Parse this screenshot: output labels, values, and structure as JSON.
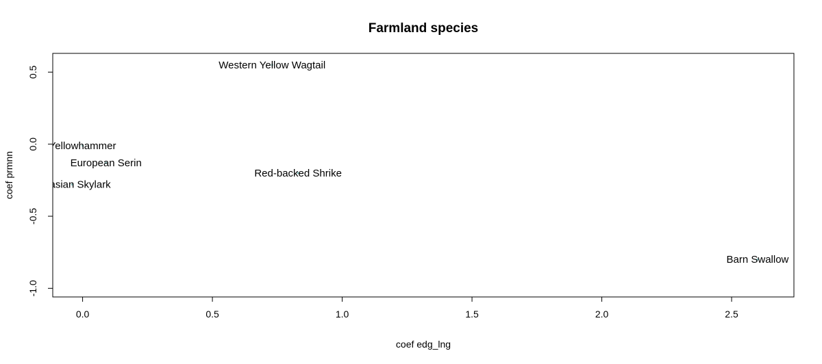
{
  "chart_data": {
    "type": "scatter",
    "title": "Farmland species",
    "xlabel": "coef edg_lng",
    "ylabel": "coef prmnn",
    "xlim": [
      -0.115,
      2.74
    ],
    "ylim": [
      -1.06,
      0.63
    ],
    "x_ticks": [
      {
        "value": 0.0,
        "label": "0.0"
      },
      {
        "value": 0.5,
        "label": "0.5"
      },
      {
        "value": 1.0,
        "label": "1.0"
      },
      {
        "value": 1.5,
        "label": "1.5"
      },
      {
        "value": 2.0,
        "label": "2.0"
      },
      {
        "value": 2.5,
        "label": "2.5"
      }
    ],
    "y_ticks": [
      {
        "value": -1.0,
        "label": "-1.0"
      },
      {
        "value": -0.5,
        "label": "-0.5"
      },
      {
        "value": 0.0,
        "label": "0.0"
      },
      {
        "value": 0.5,
        "label": "0.5"
      }
    ],
    "grid": false,
    "point_color": "#7fb7b7",
    "points": [
      {
        "label": "Western Yellow Wagtail",
        "x": 0.73,
        "y": 0.55
      },
      {
        "label": "Yellowhammer",
        "x": 0.0,
        "y": -0.01
      },
      {
        "label": "European Serin",
        "x": 0.09,
        "y": -0.13
      },
      {
        "label": "Red-backed Shrike",
        "x": 0.83,
        "y": -0.2
      },
      {
        "label": "Eurasian Skylark",
        "x": -0.04,
        "y": -0.28
      },
      {
        "label": "Barn Swallow",
        "x": 2.6,
        "y": -0.8
      }
    ]
  }
}
